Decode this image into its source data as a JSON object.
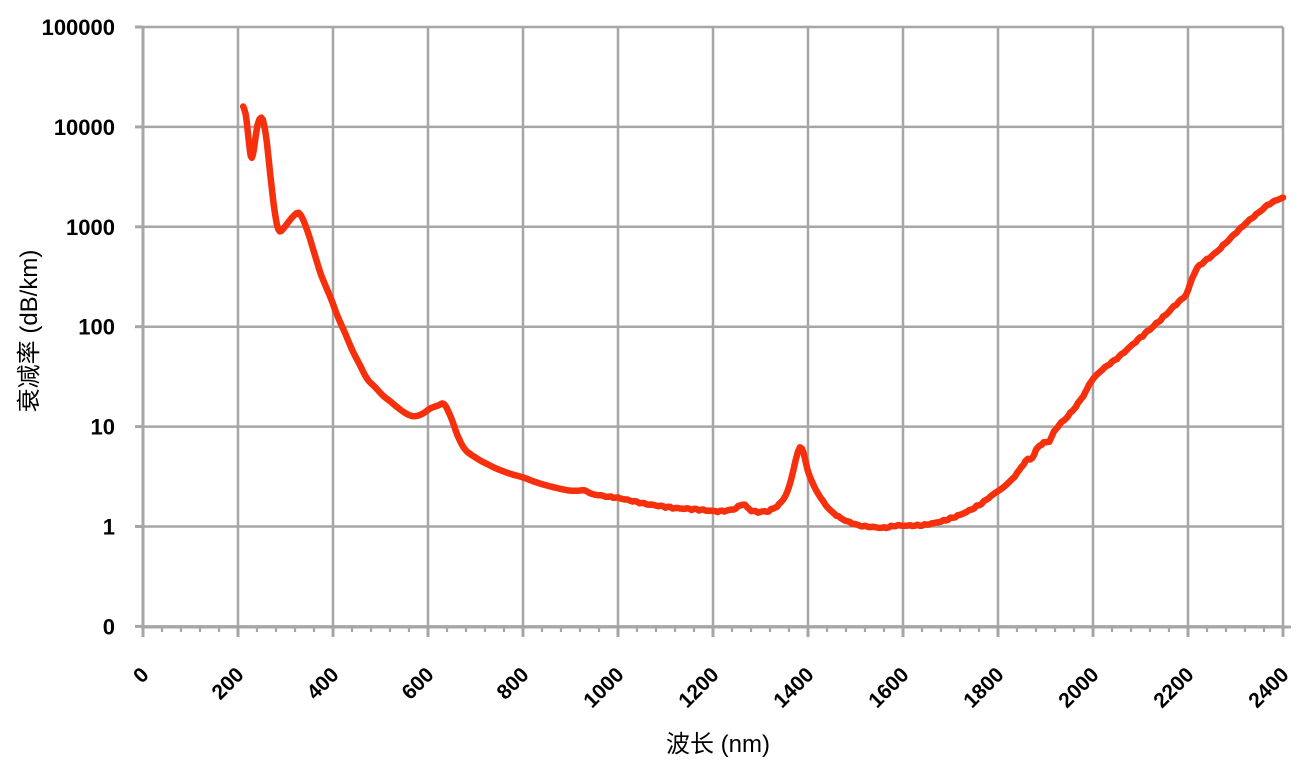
{
  "colors": {
    "background": "#ffffff",
    "grid": "#a6a6a6",
    "axis": "#a6a6a6",
    "tick_label": "#000000",
    "curve": "#f62f0d"
  },
  "chart_data": {
    "type": "line",
    "title": "",
    "xlabel": "波长 (nm)",
    "ylabel": "衰减率 (dB/km)",
    "grid": true,
    "legend": "none",
    "xlim": [
      0,
      2400
    ],
    "x_major_ticks": [
      0,
      200,
      400,
      600,
      800,
      1000,
      1200,
      1400,
      1600,
      1800,
      2000,
      2200,
      2400
    ],
    "x_tick_labels": [
      "0",
      "200",
      "400",
      "600",
      "800",
      "1000",
      "1200",
      "1400",
      "1600",
      "1800",
      "2000",
      "2200",
      "2400"
    ],
    "x_minor_step": 40,
    "y_scale": "log",
    "y_ticks": [
      {
        "label": "100000",
        "value": 100000
      },
      {
        "label": "10000",
        "value": 10000
      },
      {
        "label": "1000",
        "value": 1000
      },
      {
        "label": "100",
        "value": 100
      },
      {
        "label": "10",
        "value": 10
      },
      {
        "label": "1",
        "value": 1
      },
      {
        "label": "0",
        "value": 0.1
      }
    ],
    "series": [
      {
        "name": "attenuation-spectrum",
        "color": "#f62f0d",
        "points": [
          [
            211,
            16000
          ],
          [
            216,
            13500
          ],
          [
            220,
            9500
          ],
          [
            225,
            5800
          ],
          [
            229,
            4900
          ],
          [
            234,
            6200
          ],
          [
            241,
            10500
          ],
          [
            249,
            12400
          ],
          [
            255,
            10500
          ],
          [
            261,
            6800
          ],
          [
            268,
            3300
          ],
          [
            275,
            1700
          ],
          [
            282,
            1050
          ],
          [
            288,
            900
          ],
          [
            295,
            950
          ],
          [
            305,
            1100
          ],
          [
            318,
            1300
          ],
          [
            328,
            1380
          ],
          [
            338,
            1150
          ],
          [
            350,
            800
          ],
          [
            362,
            520
          ],
          [
            375,
            330
          ],
          [
            394,
            200
          ],
          [
            410,
            126
          ],
          [
            425,
            87
          ],
          [
            440,
            59
          ],
          [
            457,
            41
          ],
          [
            472,
            30
          ],
          [
            488,
            25
          ],
          [
            505,
            20.5
          ],
          [
            520,
            18
          ],
          [
            540,
            15
          ],
          [
            558,
            13.2
          ],
          [
            572,
            12.7
          ],
          [
            588,
            13.4
          ],
          [
            605,
            15.2
          ],
          [
            622,
            16.3
          ],
          [
            634,
            16.8
          ],
          [
            648,
            12.5
          ],
          [
            662,
            8.2
          ],
          [
            678,
            5.9
          ],
          [
            700,
            4.9
          ],
          [
            725,
            4.2
          ],
          [
            750,
            3.7
          ],
          [
            775,
            3.35
          ],
          [
            800,
            3.1
          ],
          [
            830,
            2.75
          ],
          [
            860,
            2.5
          ],
          [
            895,
            2.3
          ],
          [
            915,
            2.28
          ],
          [
            930,
            2.3
          ],
          [
            945,
            2.12
          ],
          [
            975,
            2.0
          ],
          [
            1000,
            1.93
          ],
          [
            1030,
            1.8
          ],
          [
            1060,
            1.68
          ],
          [
            1090,
            1.6
          ],
          [
            1120,
            1.53
          ],
          [
            1150,
            1.5
          ],
          [
            1180,
            1.46
          ],
          [
            1205,
            1.42
          ],
          [
            1228,
            1.44
          ],
          [
            1248,
            1.52
          ],
          [
            1262,
            1.68
          ],
          [
            1272,
            1.55
          ],
          [
            1285,
            1.42
          ],
          [
            1300,
            1.4
          ],
          [
            1318,
            1.44
          ],
          [
            1335,
            1.6
          ],
          [
            1352,
            2.0
          ],
          [
            1364,
            2.9
          ],
          [
            1374,
            4.6
          ],
          [
            1383,
            6.2
          ],
          [
            1391,
            5.4
          ],
          [
            1399,
            3.7
          ],
          [
            1410,
            2.7
          ],
          [
            1422,
            2.1
          ],
          [
            1437,
            1.65
          ],
          [
            1452,
            1.38
          ],
          [
            1468,
            1.22
          ],
          [
            1488,
            1.1
          ],
          [
            1510,
            1.02
          ],
          [
            1535,
            0.99
          ],
          [
            1560,
            0.97
          ],
          [
            1585,
            1.02
          ],
          [
            1610,
            1.02
          ],
          [
            1640,
            1.03
          ],
          [
            1665,
            1.08
          ],
          [
            1690,
            1.16
          ],
          [
            1715,
            1.28
          ],
          [
            1740,
            1.45
          ],
          [
            1765,
            1.7
          ],
          [
            1790,
            2.1
          ],
          [
            1815,
            2.55
          ],
          [
            1840,
            3.4
          ],
          [
            1858,
            4.5
          ],
          [
            1872,
            4.9
          ],
          [
            1884,
            6.2
          ],
          [
            1896,
            6.8
          ],
          [
            1908,
            7.2
          ],
          [
            1918,
            8.8
          ],
          [
            1926,
            10
          ],
          [
            1938,
            11.5
          ],
          [
            1952,
            13.5
          ],
          [
            1968,
            17
          ],
          [
            1984,
            22
          ],
          [
            2000,
            30
          ],
          [
            2025,
            39
          ],
          [
            2050,
            48
          ],
          [
            2075,
            61
          ],
          [
            2100,
            78
          ],
          [
            2128,
            102
          ],
          [
            2152,
            130
          ],
          [
            2175,
            168
          ],
          [
            2196,
            210
          ],
          [
            2208,
            300
          ],
          [
            2220,
            390
          ],
          [
            2240,
            470
          ],
          [
            2260,
            560
          ],
          [
            2282,
            710
          ],
          [
            2302,
            880
          ],
          [
            2325,
            1120
          ],
          [
            2348,
            1380
          ],
          [
            2372,
            1700
          ],
          [
            2400,
            1960
          ]
        ]
      }
    ]
  }
}
